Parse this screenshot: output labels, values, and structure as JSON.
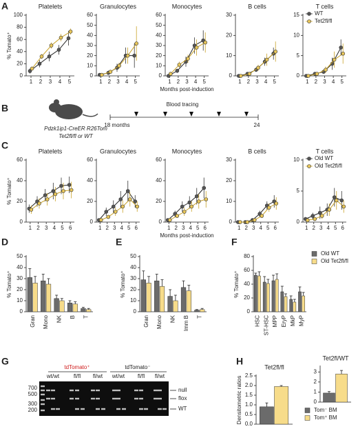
{
  "panel_labels": [
    "A",
    "B",
    "C",
    "D",
    "E",
    "F",
    "G",
    "H"
  ],
  "timeline": {
    "start": "18 months",
    "end": "24",
    "event": "Blood tracing",
    "caption": [
      "Pdzk1ip1-CreER R26Tom",
      "Tet2fl/fl or WT"
    ]
  },
  "gel": {
    "groups": [
      "tdTomato⁺",
      "tdTomato⁻"
    ],
    "lanes": [
      "wt/wt",
      "fl/fl",
      "fl/wt",
      "wt/wt",
      "fl/fl",
      "fl/wt"
    ],
    "size_markers": [
      "700",
      "500",
      "300",
      "200"
    ],
    "bands": [
      "null",
      "flox",
      "WT"
    ]
  },
  "chart_data": [
    {
      "type": "line",
      "title": "Platelets",
      "y_label": "% Tomato⁺",
      "x": [
        1,
        2,
        3,
        4,
        5
      ],
      "xlim": [
        0.5,
        5.5
      ],
      "xticks": [
        1,
        2,
        3,
        4,
        5
      ],
      "ylim": [
        0,
        100
      ],
      "yticks": [
        0,
        20,
        40,
        60,
        80,
        100
      ],
      "series": [
        {
          "name": "WT",
          "color": "#555555",
          "values": [
            8,
            20,
            32,
            43,
            62
          ],
          "errors": [
            4,
            6,
            8,
            8,
            12
          ]
        },
        {
          "name": "Tet2fl/fl",
          "color": "#e8c65a",
          "values": [
            12,
            32,
            50,
            63,
            73
          ],
          "errors": [
            3,
            4,
            5,
            6,
            5
          ]
        }
      ]
    },
    {
      "type": "line",
      "title": "Granulocytes",
      "x": [
        1,
        2,
        3,
        4,
        5
      ],
      "xlim": [
        0.5,
        5.5
      ],
      "xticks": [
        1,
        2,
        3,
        4,
        5
      ],
      "ylim": [
        0,
        60
      ],
      "yticks": [
        0,
        10,
        20,
        30,
        40,
        50,
        60
      ],
      "series": [
        {
          "name": "WT",
          "color": "#555555",
          "values": [
            1,
            3,
            8,
            20,
            20
          ],
          "errors": [
            1,
            2,
            4,
            8,
            12
          ]
        },
        {
          "name": "Tet2fl/fl",
          "color": "#e8c65a",
          "values": [
            1,
            4,
            10,
            20,
            32
          ],
          "errors": [
            1,
            2,
            3,
            8,
            17
          ]
        }
      ]
    },
    {
      "type": "line",
      "title": "Monocytes",
      "x_label": "Months post-induction",
      "x": [
        1,
        2,
        3,
        4,
        5
      ],
      "xlim": [
        0.5,
        5.5
      ],
      "xticks": [
        1,
        2,
        3,
        4,
        5
      ],
      "ylim": [
        0,
        60
      ],
      "yticks": [
        0,
        10,
        20,
        30,
        40,
        50,
        60
      ],
      "series": [
        {
          "name": "WT",
          "color": "#555555",
          "values": [
            0,
            5,
            14,
            30,
            35
          ],
          "errors": [
            0.5,
            2,
            5,
            8,
            10
          ]
        },
        {
          "name": "Tet2fl/fl",
          "color": "#e8c65a",
          "values": [
            2,
            11,
            17,
            28,
            33
          ],
          "errors": [
            1,
            3,
            4,
            8,
            10
          ]
        }
      ]
    },
    {
      "type": "line",
      "title": "B cells",
      "x": [
        1,
        2,
        3,
        4,
        5
      ],
      "xlim": [
        0.5,
        5.5
      ],
      "xticks": [
        1,
        2,
        3,
        4,
        5
      ],
      "ylim": [
        0,
        30
      ],
      "yticks": [
        0,
        10,
        20,
        30
      ],
      "series": [
        {
          "name": "WT",
          "color": "#555555",
          "values": [
            0,
            1,
            3,
            7,
            11
          ],
          "errors": [
            0.3,
            0.5,
            1,
            2,
            3
          ]
        },
        {
          "name": "Tet2fl/fl",
          "color": "#e8c65a",
          "values": [
            0,
            1,
            4,
            8,
            12
          ],
          "errors": [
            0.3,
            0.5,
            1.5,
            3,
            5
          ]
        }
      ]
    },
    {
      "type": "line",
      "title": "T cells",
      "legend": "upper left",
      "x": [
        1,
        2,
        3,
        4,
        5
      ],
      "xlim": [
        0.5,
        5.5
      ],
      "xticks": [
        1,
        2,
        3,
        4,
        5
      ],
      "ylim": [
        0,
        15
      ],
      "yticks": [
        0,
        5,
        10,
        15
      ],
      "series": [
        {
          "name": "WT",
          "color": "#555555",
          "values": [
            0,
            0.5,
            1,
            3,
            7
          ],
          "errors": [
            0.2,
            0.3,
            0.5,
            1.5,
            2
          ]
        },
        {
          "name": "Tet2fl/fl",
          "color": "#e8c65a",
          "values": [
            0,
            0.5,
            1.5,
            4,
            5.5
          ],
          "errors": [
            0.2,
            0.3,
            0.8,
            2,
            2.5
          ]
        }
      ]
    },
    {
      "type": "line",
      "title": "Platelets",
      "y_label": "% Tomato⁺",
      "x": [
        1,
        2,
        3,
        4,
        5,
        6
      ],
      "xlim": [
        0.5,
        6.5
      ],
      "xticks": [
        1,
        2,
        3,
        4,
        5,
        6
      ],
      "ylim": [
        0,
        60
      ],
      "yticks": [
        0,
        20,
        40,
        60
      ],
      "series": [
        {
          "name": "Old WT",
          "color": "#555555",
          "values": [
            13,
            20,
            26,
            30,
            35,
            36
          ],
          "errors": [
            4,
            5,
            6,
            8,
            8,
            8
          ]
        },
        {
          "name": "Old Tet2fl/fl",
          "color": "#e8c65a",
          "values": [
            12,
            18,
            22,
            27,
            30,
            31
          ],
          "errors": [
            4,
            5,
            6,
            7,
            8,
            8
          ]
        }
      ]
    },
    {
      "type": "line",
      "title": "Granulocytes",
      "x": [
        1,
        2,
        3,
        4,
        5,
        6
      ],
      "xlim": [
        0.5,
        6.5
      ],
      "xticks": [
        1,
        2,
        3,
        4,
        5,
        6
      ],
      "ylim": [
        0,
        60
      ],
      "yticks": [
        0,
        20,
        40,
        60
      ],
      "series": [
        {
          "name": "Old WT",
          "color": "#555555",
          "values": [
            2,
            10,
            15,
            22,
            30,
            20
          ],
          "errors": [
            1,
            4,
            6,
            8,
            10,
            6
          ]
        },
        {
          "name": "Old Tet2fl/fl",
          "color": "#e8c65a",
          "values": [
            2,
            5,
            10,
            15,
            22,
            15
          ],
          "errors": [
            1,
            2,
            4,
            6,
            7,
            5
          ]
        }
      ]
    },
    {
      "type": "line",
      "title": "Monocytes",
      "x_label": "Months post-induction",
      "x": [
        1,
        2,
        3,
        4,
        5,
        6
      ],
      "xlim": [
        0.5,
        6.5
      ],
      "xticks": [
        1,
        2,
        3,
        4,
        5,
        6
      ],
      "ylim": [
        0,
        60
      ],
      "yticks": [
        0,
        20,
        40,
        60
      ],
      "series": [
        {
          "name": "Old WT",
          "color": "#555555",
          "values": [
            2,
            8,
            15,
            19,
            25,
            33
          ],
          "errors": [
            1,
            3,
            5,
            6,
            8,
            10
          ]
        },
        {
          "name": "Old Tet2fl/fl",
          "color": "#e8c65a",
          "values": [
            2,
            6,
            10,
            15,
            20,
            22
          ],
          "errors": [
            1,
            2,
            4,
            5,
            7,
            8
          ]
        }
      ]
    },
    {
      "type": "line",
      "title": "B cells",
      "x": [
        1,
        2,
        3,
        4,
        5,
        6
      ],
      "xlim": [
        0.5,
        6.5
      ],
      "xticks": [
        1,
        2,
        3,
        4,
        5,
        6
      ],
      "ylim": [
        0,
        30
      ],
      "yticks": [
        0,
        10,
        20,
        30
      ],
      "series": [
        {
          "name": "Old WT",
          "color": "#555555",
          "values": [
            0,
            0,
            1,
            4,
            8,
            10
          ],
          "errors": [
            0.2,
            0.2,
            0.5,
            1.5,
            2,
            3
          ]
        },
        {
          "name": "Old Tet2fl/fl",
          "color": "#e8c65a",
          "values": [
            0,
            0,
            1,
            3,
            7,
            9
          ],
          "errors": [
            0.2,
            0.2,
            0.5,
            1,
            2,
            3
          ]
        }
      ]
    },
    {
      "type": "line",
      "title": "T cells",
      "legend": "upper left",
      "x": [
        1,
        2,
        3,
        4,
        5,
        6
      ],
      "xlim": [
        0.5,
        6.5
      ],
      "xticks": [
        1,
        2,
        3,
        4,
        5,
        6
      ],
      "ylim": [
        0,
        10
      ],
      "yticks": [
        0,
        5,
        10
      ],
      "series": [
        {
          "name": "Old WT",
          "color": "#555555",
          "values": [
            0.5,
            1,
            1.5,
            2,
            4,
            3.5
          ],
          "errors": [
            0.3,
            0.5,
            1,
            1,
            1.5,
            1.5
          ]
        },
        {
          "name": "Old Tet2fl/fl",
          "color": "#e8c65a",
          "values": [
            0.3,
            0.5,
            1,
            2,
            3.5,
            2.5
          ],
          "errors": [
            0.2,
            0.3,
            0.5,
            1,
            1.5,
            1
          ]
        }
      ]
    },
    {
      "type": "bar",
      "y_label": "% Tomato⁺",
      "categories": [
        "Gran",
        "Mono",
        "NK",
        "B",
        "T"
      ],
      "ylim": [
        0,
        50
      ],
      "yticks": [
        0,
        10,
        20,
        30,
        40,
        50
      ],
      "series": [
        {
          "name": "Old WT",
          "color": "#6b6b6b",
          "values": [
            31,
            28,
            12,
            8,
            3
          ],
          "errors": [
            8,
            6,
            3,
            2,
            1
          ]
        },
        {
          "name": "Old Tet2fl/fl",
          "color": "#f7dc8a",
          "values": [
            26,
            25,
            10,
            7,
            2
          ],
          "errors": [
            6,
            5,
            2,
            2,
            1
          ]
        }
      ]
    },
    {
      "type": "bar",
      "y_label": "% Tomato⁺",
      "categories": [
        "Gran",
        "Mono",
        "NK",
        "Imm B",
        "T"
      ],
      "ylim": [
        0,
        50
      ],
      "yticks": [
        0,
        10,
        20,
        30,
        40,
        50
      ],
      "series": [
        {
          "name": "Old WT",
          "color": "#6b6b6b",
          "values": [
            29,
            28,
            14,
            22,
            1.5
          ],
          "errors": [
            8,
            6,
            6,
            6,
            0.5
          ]
        },
        {
          "name": "Old Tet2fl/fl",
          "color": "#f7dc8a",
          "values": [
            26,
            23,
            10,
            19,
            2
          ],
          "errors": [
            6,
            6,
            5,
            5,
            1
          ]
        }
      ]
    },
    {
      "type": "bar",
      "y_label": "% Tomato⁺",
      "legend": "right",
      "categories": [
        "HSC",
        "ST-HSC",
        "MPP",
        "EryP",
        "MkP",
        "MyP"
      ],
      "ylim": [
        0,
        80
      ],
      "yticks": [
        0,
        20,
        40,
        60,
        80
      ],
      "series": [
        {
          "name": "Old WT",
          "color": "#6b6b6b",
          "values": [
            53,
            43,
            45,
            29,
            18,
            29
          ],
          "errors": [
            3,
            8,
            8,
            8,
            5,
            7
          ]
        },
        {
          "name": "Old Tet2fl/fl",
          "color": "#f7dc8a",
          "values": [
            52,
            41,
            47,
            22,
            14,
            23
          ],
          "errors": [
            6,
            6,
            8,
            4,
            4,
            5
          ]
        }
      ]
    },
    {
      "type": "bar",
      "title": "Tet2fl/fl",
      "y_label": "Densitometric ratios",
      "categories": [
        null
      ],
      "ylim": [
        0,
        2.5
      ],
      "yticks": [
        {
          "value": 0,
          "label": "0.0"
        },
        0.5,
        {
          "value": 1,
          "label": "1.0"
        },
        1.5,
        {
          "value": 2,
          "label": "2.0"
        },
        2.5
      ],
      "series": [
        {
          "name": "Tom⁻ BM",
          "color": "#6b6b6b",
          "values": [
            0.9
          ],
          "errors": [
            0.2
          ]
        },
        {
          "name": "Tom⁺ BM",
          "color": "#f7dc8a",
          "values": [
            1.95
          ],
          "errors": [
            0.05
          ]
        }
      ]
    },
    {
      "type": "bar",
      "title": "Tet2fl/WT",
      "legend": "below",
      "categories": [
        null
      ],
      "ylim": [
        0,
        3.5
      ],
      "yticks": [
        0,
        1,
        2,
        3
      ],
      "series": [
        {
          "name": "Tom⁻ BM",
          "color": "#6b6b6b",
          "values": [
            0.9
          ],
          "errors": [
            0.15
          ]
        },
        {
          "name": "Tom⁺ BM",
          "color": "#f7dc8a",
          "values": [
            2.8
          ],
          "errors": [
            0.35
          ]
        }
      ]
    }
  ]
}
